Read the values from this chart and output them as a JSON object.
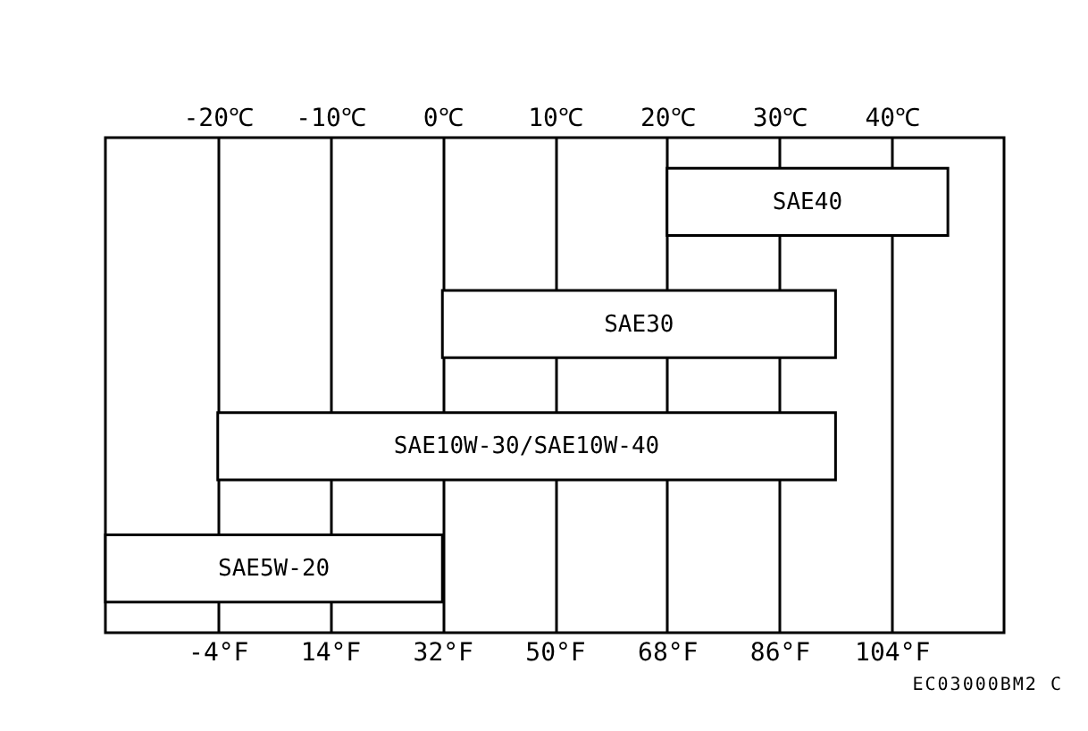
{
  "chart_data": {
    "type": "bar",
    "orientation": "horizontal",
    "categories": [
      "SAE40",
      "SAE30",
      "SAE10W-30/SAE10W-40",
      "SAE5W-20"
    ],
    "series": [
      {
        "color": "#ffffff",
        "axis": "x2",
        "base": [
          20,
          0,
          -20,
          -30
        ],
        "values": [
          25,
          35,
          55,
          30
        ]
      }
    ],
    "xlim": [
      -22,
      122
    ],
    "xticks": [
      {
        "value": -4,
        "label": "-4°F"
      },
      {
        "value": 14,
        "label": "14°F"
      },
      {
        "value": 32,
        "label": "32°F"
      },
      {
        "value": 50,
        "label": "50°F"
      },
      {
        "value": 68,
        "label": "68°F"
      },
      {
        "value": 86,
        "label": "86°F"
      },
      {
        "value": 104,
        "label": "104°F"
      }
    ],
    "x2lim": [
      -30,
      50
    ],
    "x2ticks": [
      {
        "value": -20,
        "label": "-20℃"
      },
      {
        "value": -10,
        "label": "-10℃"
      },
      {
        "value": 0,
        "label": "0℃"
      },
      {
        "value": 10,
        "label": "10℃"
      },
      {
        "value": 20,
        "label": "20℃"
      },
      {
        "value": 30,
        "label": "30℃"
      },
      {
        "value": 40,
        "label": "40℃"
      }
    ],
    "grid": "x",
    "tick_labels": "x",
    "annotations": [
      "EC03000BM2 C"
    ]
  }
}
